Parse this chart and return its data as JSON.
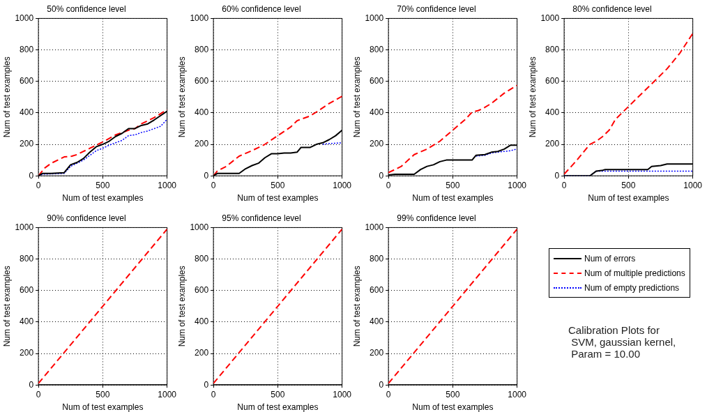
{
  "chart_data": [
    {
      "type": "line",
      "title": "50% confidence level",
      "xlabel": "Num of test examples",
      "ylabel": "Num of test examples",
      "xlim": [
        0,
        1000
      ],
      "xticks": [
        0,
        500,
        1000
      ],
      "ylim": [
        0,
        1000
      ],
      "yticks": [
        0,
        200,
        400,
        600,
        800,
        1000
      ],
      "grid": true,
      "marker": "none",
      "series": [
        {
          "color": "#000000",
          "line_style": "solid",
          "x": [
            0,
            30,
            100,
            200,
            250,
            300,
            350,
            400,
            450,
            500,
            550,
            600,
            650,
            700,
            750,
            800,
            850,
            900,
            1000
          ],
          "values": [
            0,
            15,
            15,
            20,
            70,
            85,
            110,
            150,
            185,
            200,
            220,
            250,
            270,
            300,
            300,
            320,
            330,
            355,
            410
          ]
        },
        {
          "color": "#ff0000",
          "line_style": "dashed",
          "x": [
            0,
            50,
            100,
            200,
            260,
            300,
            400,
            500,
            600,
            700,
            750,
            800,
            900,
            1000
          ],
          "values": [
            0,
            50,
            80,
            120,
            125,
            135,
            175,
            215,
            260,
            290,
            300,
            330,
            370,
            420
          ]
        },
        {
          "color": "#0000ff",
          "line_style": "dotted",
          "x": [
            0,
            30,
            200,
            250,
            300,
            350,
            400,
            450,
            500,
            550,
            600,
            650,
            700,
            750,
            800,
            850,
            900,
            950,
            1000
          ],
          "values": [
            0,
            10,
            15,
            60,
            80,
            100,
            130,
            160,
            175,
            195,
            210,
            225,
            255,
            260,
            275,
            285,
            300,
            315,
            360
          ]
        }
      ]
    },
    {
      "type": "line",
      "title": "60% confidence level",
      "xlabel": "Num of test examples",
      "ylabel": "Num of test examples",
      "xlim": [
        0,
        1000
      ],
      "xticks": [
        0,
        500,
        1000
      ],
      "ylim": [
        0,
        1000
      ],
      "yticks": [
        0,
        200,
        400,
        600,
        800,
        1000
      ],
      "grid": true,
      "marker": "none",
      "series": [
        {
          "color": "#000000",
          "line_style": "solid",
          "x": [
            0,
            30,
            200,
            250,
            300,
            350,
            400,
            450,
            500,
            550,
            600,
            650,
            680,
            750,
            800,
            850,
            900,
            950,
            1000
          ],
          "values": [
            0,
            15,
            15,
            45,
            65,
            80,
            115,
            140,
            140,
            145,
            145,
            150,
            180,
            180,
            200,
            210,
            230,
            255,
            290
          ]
        },
        {
          "color": "#ff0000",
          "line_style": "dashed",
          "x": [
            0,
            30,
            100,
            200,
            300,
            400,
            500,
            600,
            650,
            700,
            750,
            800,
            900,
            1000
          ],
          "values": [
            0,
            30,
            60,
            125,
            160,
            200,
            255,
            310,
            350,
            365,
            380,
            405,
            460,
            505
          ]
        },
        {
          "color": "#0000ff",
          "line_style": "dotted",
          "x": [
            850,
            900,
            1000
          ],
          "values": [
            200,
            205,
            210
          ]
        }
      ]
    },
    {
      "type": "line",
      "title": "70% confidence level",
      "xlabel": "Num of test examples",
      "ylabel": "Num of test examples",
      "xlim": [
        0,
        1000
      ],
      "xticks": [
        0,
        500,
        1000
      ],
      "ylim": [
        0,
        1000
      ],
      "yticks": [
        0,
        200,
        400,
        600,
        800,
        1000
      ],
      "grid": true,
      "marker": "none",
      "series": [
        {
          "color": "#000000",
          "line_style": "solid",
          "x": [
            0,
            50,
            200,
            250,
            300,
            350,
            400,
            450,
            650,
            680,
            750,
            800,
            850,
            900,
            950,
            1000
          ],
          "values": [
            5,
            10,
            10,
            40,
            60,
            70,
            90,
            100,
            100,
            130,
            135,
            150,
            155,
            170,
            195,
            195
          ]
        },
        {
          "color": "#ff0000",
          "line_style": "dashed",
          "x": [
            0,
            50,
            100,
            200,
            300,
            400,
            500,
            600,
            650,
            700,
            750,
            800,
            900,
            1000
          ],
          "values": [
            20,
            40,
            60,
            135,
            170,
            220,
            290,
            360,
            405,
            415,
            435,
            460,
            525,
            575
          ]
        },
        {
          "color": "#0000ff",
          "line_style": "dotted",
          "x": [
            680,
            750,
            800,
            850,
            900,
            950,
            1000
          ],
          "values": [
            125,
            130,
            145,
            150,
            155,
            160,
            170
          ]
        }
      ]
    },
    {
      "type": "line",
      "title": "80% confidence level",
      "xlabel": "Num of test examples",
      "ylabel": "Num of test examples",
      "xlim": [
        0,
        1000
      ],
      "xticks": [
        0,
        500,
        1000
      ],
      "ylim": [
        0,
        1000
      ],
      "yticks": [
        0,
        200,
        400,
        600,
        800,
        1000
      ],
      "grid": true,
      "marker": "none",
      "series": [
        {
          "color": "#000000",
          "line_style": "solid",
          "x": [
            0,
            200,
            250,
            300,
            320,
            650,
            680,
            750,
            800,
            1000
          ],
          "values": [
            0,
            0,
            30,
            35,
            40,
            40,
            60,
            65,
            75,
            75
          ]
        },
        {
          "color": "#ff0000",
          "line_style": "dashed",
          "x": [
            0,
            100,
            200,
            250,
            300,
            350,
            400,
            500,
            600,
            700,
            800,
            900,
            1000
          ],
          "values": [
            10,
            100,
            200,
            220,
            250,
            290,
            360,
            440,
            520,
            600,
            680,
            780,
            905
          ]
        },
        {
          "color": "#0000ff",
          "line_style": "dotted",
          "x": [
            0,
            200,
            250,
            1000
          ],
          "values": [
            0,
            0,
            30,
            30
          ]
        }
      ]
    },
    {
      "type": "line",
      "title": "90% confidence level",
      "xlabel": "Num of test examples",
      "ylabel": "Num of test examples",
      "xlim": [
        0,
        1000
      ],
      "xticks": [
        0,
        500,
        1000
      ],
      "ylim": [
        0,
        1000
      ],
      "yticks": [
        0,
        200,
        400,
        600,
        800,
        1000
      ],
      "grid": true,
      "marker": "none",
      "series": [
        {
          "color": "#000000",
          "line_style": "solid",
          "x": [
            0,
            1000
          ],
          "values": [
            0,
            0
          ]
        },
        {
          "color": "#ff0000",
          "line_style": "dashed",
          "x": [
            0,
            1000
          ],
          "values": [
            10,
            990
          ]
        }
      ]
    },
    {
      "type": "line",
      "title": "95% confidence level",
      "xlabel": "Num of test examples",
      "ylabel": "Num of test examples",
      "xlim": [
        0,
        1000
      ],
      "xticks": [
        0,
        500,
        1000
      ],
      "ylim": [
        0,
        1000
      ],
      "yticks": [
        0,
        200,
        400,
        600,
        800,
        1000
      ],
      "grid": true,
      "marker": "none",
      "series": [
        {
          "color": "#000000",
          "line_style": "solid",
          "x": [
            0,
            1000
          ],
          "values": [
            0,
            0
          ]
        },
        {
          "color": "#ff0000",
          "line_style": "dashed",
          "x": [
            0,
            1000
          ],
          "values": [
            10,
            990
          ]
        }
      ]
    },
    {
      "type": "line",
      "title": "99% confidence level",
      "xlabel": "Num of test examples",
      "ylabel": "Num of test examples",
      "xlim": [
        0,
        1000
      ],
      "xticks": [
        0,
        500,
        1000
      ],
      "ylim": [
        0,
        1000
      ],
      "yticks": [
        0,
        200,
        400,
        600,
        800,
        1000
      ],
      "grid": true,
      "marker": "none",
      "legend": "right",
      "annotations": [
        "Calibration Plots for\n SVM, gaussian kernel,\n Param = 10.00"
      ],
      "series": [
        {
          "name": "Num of errors",
          "color": "#000000",
          "line_style": "solid",
          "x": [
            0,
            1000
          ],
          "values": [
            0,
            0
          ]
        },
        {
          "name": "Num of multiple predictions",
          "color": "#ff0000",
          "line_style": "dashed",
          "x": [
            0,
            1000
          ],
          "values": [
            10,
            990
          ]
        },
        {
          "name": "Num of empty predictions",
          "color": "#0000ff",
          "line_style": "dotted"
        }
      ]
    }
  ]
}
